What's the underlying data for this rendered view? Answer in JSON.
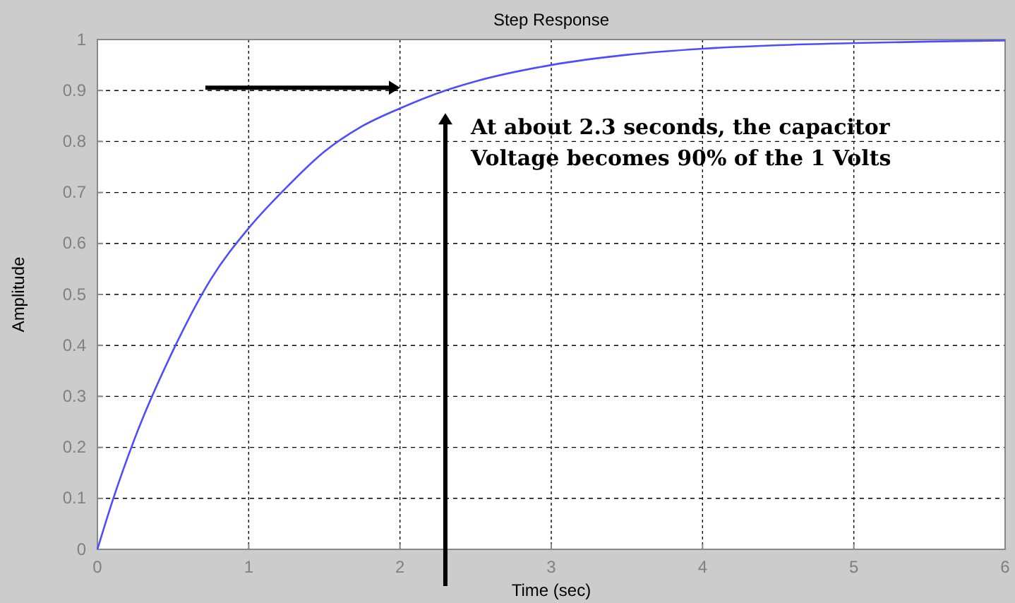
{
  "chart_data": {
    "type": "line",
    "title": "Step Response",
    "xlabel": "Time (sec)",
    "ylabel": "Amplitude",
    "x": [
      0,
      0.1,
      0.25,
      0.5,
      0.75,
      1,
      1.25,
      1.5,
      1.75,
      2,
      2.3,
      2.5,
      3,
      3.5,
      4,
      4.5,
      5,
      5.5,
      6
    ],
    "series": [
      {
        "color": "#4d4dff",
        "values": [
          0,
          0.095,
          0.22,
          0.39,
          0.53,
          0.63,
          0.71,
          0.78,
          0.83,
          0.865,
          0.9,
          0.918,
          0.95,
          0.97,
          0.982,
          0.989,
          0.993,
          0.996,
          0.998
        ]
      }
    ],
    "xlim": [
      0,
      6
    ],
    "ylim": [
      0,
      1
    ],
    "xticks": [
      0,
      1,
      2,
      3,
      4,
      5,
      6
    ],
    "yticks": [
      0,
      0.1,
      0.2,
      0.3,
      0.4,
      0.5,
      0.6,
      0.7,
      0.8,
      0.9,
      1
    ],
    "grid": true,
    "marker": "none",
    "line_style": "solid",
    "annotations": [
      {
        "text": "At about 2.3 seconds, the capacitor Voltage becomes 90% of the 1 Volts",
        "x": 2.3,
        "y": 0.9
      }
    ]
  }
}
